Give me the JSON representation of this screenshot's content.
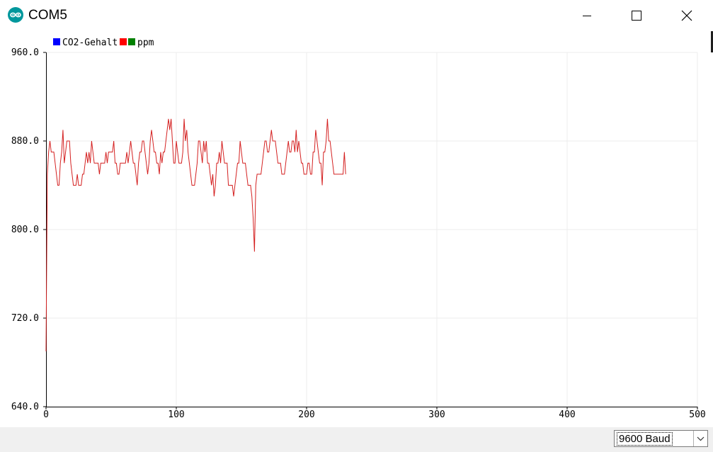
{
  "window": {
    "title": "COM5",
    "accent": "#00979c"
  },
  "controls": {
    "minimize_icon": "minimize-icon",
    "maximize_icon": "maximize-icon",
    "close_icon": "close-icon"
  },
  "baud": {
    "selected": "9600 Baud"
  },
  "chart_data": {
    "type": "line",
    "legend": [
      {
        "label": "CO2-Gehalt",
        "color": "#0000ff"
      },
      {
        "label": "ppm",
        "color": "#ff0000",
        "extra_color": "#008000"
      }
    ],
    "legend_placement": "top-left",
    "grid": true,
    "xlim": [
      0,
      500
    ],
    "ylim": [
      640.0,
      960.0
    ],
    "x_ticks": [
      "0",
      "100",
      "200",
      "300",
      "400",
      "500"
    ],
    "y_ticks": [
      "960.0",
      "880.0",
      "800.0",
      "720.0",
      "640.0"
    ],
    "series": [
      {
        "color": "#d42020",
        "values": [
          690,
          850,
          870,
          880,
          870,
          870,
          870,
          860,
          850,
          840,
          840,
          860,
          870,
          890,
          860,
          870,
          880,
          880,
          880,
          860,
          850,
          840,
          840,
          840,
          850,
          840,
          840,
          840,
          850,
          850,
          860,
          870,
          860,
          870,
          860,
          880,
          870,
          860,
          860,
          860,
          860,
          850,
          860,
          860,
          860,
          860,
          870,
          860,
          870,
          870,
          870,
          870,
          880,
          860,
          860,
          850,
          850,
          860,
          860,
          860,
          860,
          860,
          870,
          860,
          870,
          880,
          870,
          860,
          860,
          850,
          840,
          860,
          870,
          870,
          880,
          880,
          870,
          860,
          850,
          860,
          880,
          890,
          880,
          870,
          870,
          860,
          860,
          850,
          870,
          860,
          870,
          870,
          880,
          890,
          900,
          890,
          900,
          880,
          860,
          860,
          880,
          870,
          860,
          860,
          860,
          870,
          900,
          880,
          890,
          870,
          860,
          850,
          840,
          840,
          840,
          850,
          860,
          880,
          880,
          870,
          860,
          880,
          870,
          880,
          860,
          860,
          850,
          840,
          850,
          830,
          840,
          860,
          860,
          870,
          860,
          880,
          870,
          860,
          860,
          860,
          840,
          840,
          840,
          840,
          830,
          840,
          850,
          860,
          860,
          880,
          870,
          860,
          860,
          860,
          850,
          840,
          840,
          840,
          830,
          810,
          780,
          840,
          850,
          850,
          850,
          850,
          860,
          870,
          880,
          880,
          870,
          870,
          880,
          890,
          880,
          880,
          880,
          870,
          860,
          860,
          860,
          850,
          850,
          850,
          860,
          870,
          880,
          870,
          870,
          880,
          880,
          870,
          890,
          870,
          880,
          870,
          860,
          860,
          850,
          850,
          850,
          860,
          860,
          850,
          850,
          870,
          870,
          890,
          880,
          870,
          860,
          860,
          840,
          870,
          870,
          880,
          900,
          880,
          880,
          870,
          860,
          850,
          850,
          850,
          850,
          850,
          850,
          850,
          850,
          870,
          850
        ]
      }
    ]
  }
}
